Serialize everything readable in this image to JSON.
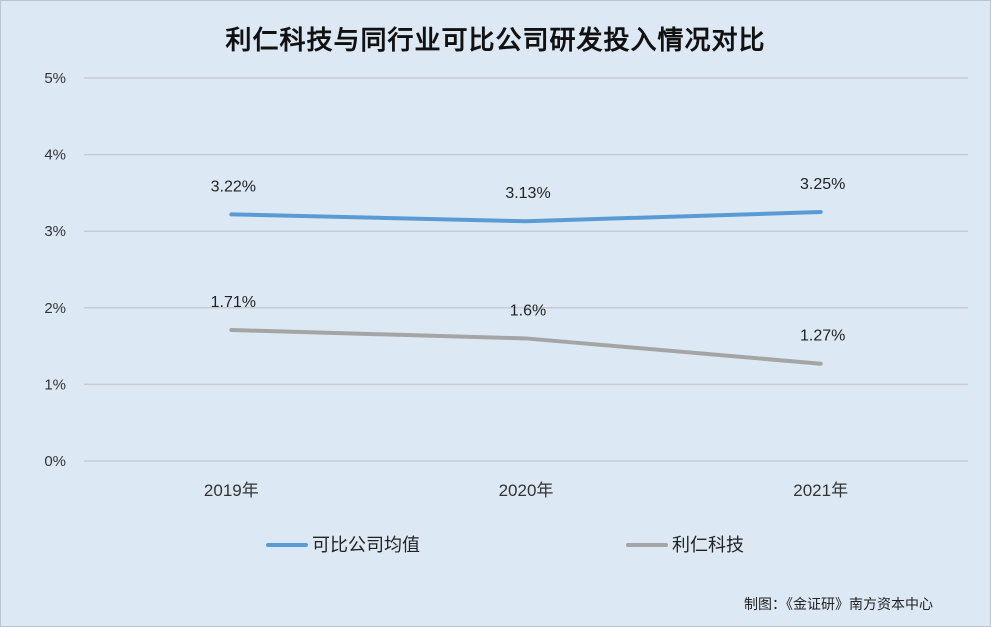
{
  "chart_data": {
    "type": "line",
    "title": "利仁科技与同行业可比公司研发投入情况对比",
    "categories": [
      "2019年",
      "2020年",
      "2021年"
    ],
    "yticks": [
      "0%",
      "1%",
      "2%",
      "3%",
      "4%",
      "5%"
    ],
    "ylim": [
      0,
      5
    ],
    "grid": true,
    "legend_position": "bottom",
    "series": [
      {
        "name": "可比公司均值",
        "values": [
          3.22,
          3.13,
          3.25
        ],
        "labels": [
          "3.22%",
          "3.13%",
          "3.25%"
        ],
        "color": "#5b9bd5"
      },
      {
        "name": "利仁科技",
        "values": [
          1.71,
          1.6,
          1.27
        ],
        "labels": [
          "1.71%",
          "1.6%",
          "1.27%"
        ],
        "color": "#a5a5a5"
      }
    ]
  },
  "credit": "制图：《金证研》南方资本中心"
}
